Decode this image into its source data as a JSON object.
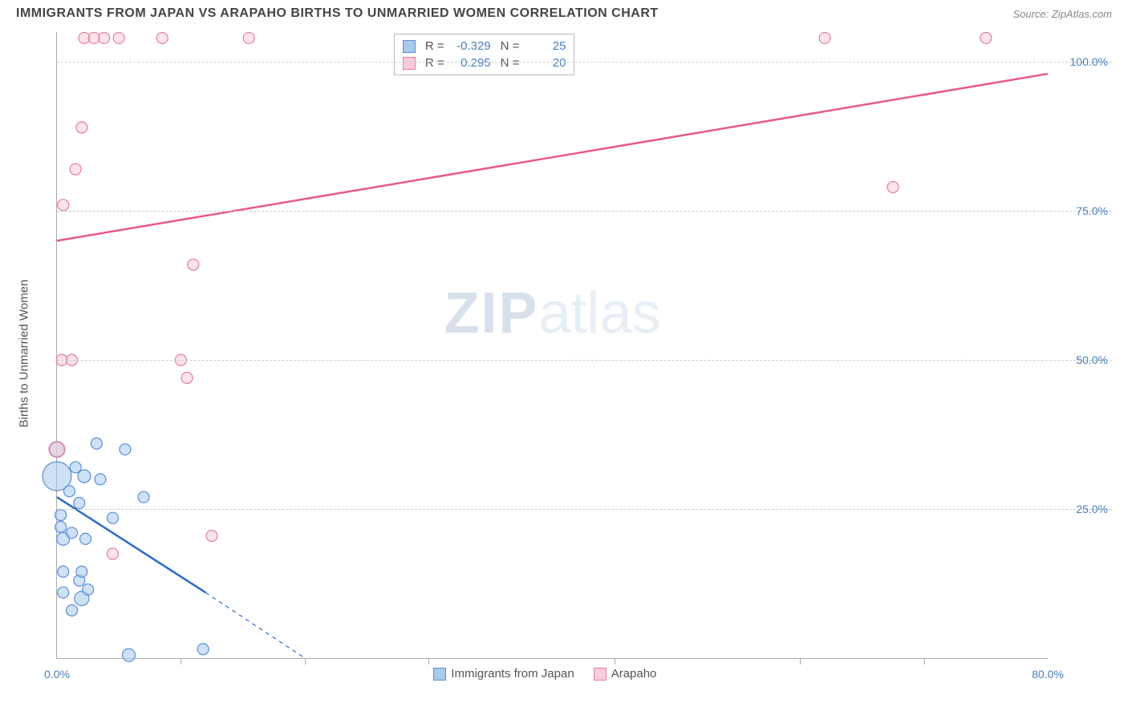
{
  "header": {
    "title": "IMMIGRANTS FROM JAPAN VS ARAPAHO BIRTHS TO UNMARRIED WOMEN CORRELATION CHART",
    "source": "Source: ZipAtlas.com"
  },
  "chart": {
    "type": "scatter-correlation",
    "ylabel": "Births to Unmarried Women",
    "xlim": [
      0,
      80
    ],
    "ylim": [
      0,
      105
    ],
    "xtick_positions": [
      0,
      80
    ],
    "xtick_labels": [
      "0.0%",
      "80.0%"
    ],
    "xtick_minor": [
      10,
      20,
      30,
      45,
      60,
      70
    ],
    "ytick_positions": [
      25,
      50,
      75,
      100
    ],
    "ytick_labels": [
      "25.0%",
      "50.0%",
      "75.0%",
      "100.0%"
    ],
    "grid_color": "#cccccc",
    "axis_color": "#aaaaaa",
    "background_color": "#ffffff",
    "label_fontsize": 15,
    "tick_fontsize": 14,
    "tick_color": "#4a7ebb",
    "watermark": {
      "part1": "ZIP",
      "part2": "atlas"
    },
    "series": [
      {
        "name": "Immigrants from Japan",
        "color_fill": "#a8c8ec",
        "color_stroke": "#5b8fd6",
        "fill_opacity": 0.55,
        "marker_radius": 7,
        "R": "-0.329",
        "N": "25",
        "trend": {
          "solid_from": [
            0,
            27
          ],
          "solid_to": [
            12,
            11
          ],
          "dashed_to": [
            20,
            0
          ],
          "width": 2.5,
          "color": "#2d6bc4"
        },
        "points": [
          {
            "x": 0.0,
            "y": 30.5,
            "r": 18
          },
          {
            "x": 0.0,
            "y": 35.0,
            "r": 9
          },
          {
            "x": 0.3,
            "y": 22.0,
            "r": 7
          },
          {
            "x": 0.3,
            "y": 24.0,
            "r": 7
          },
          {
            "x": 0.5,
            "y": 20.0,
            "r": 8
          },
          {
            "x": 0.5,
            "y": 14.5,
            "r": 7
          },
          {
            "x": 0.5,
            "y": 11.0,
            "r": 7
          },
          {
            "x": 1.0,
            "y": 28.0,
            "r": 7
          },
          {
            "x": 1.2,
            "y": 21.0,
            "r": 7
          },
          {
            "x": 1.2,
            "y": 8.0,
            "r": 7
          },
          {
            "x": 1.5,
            "y": 32.0,
            "r": 7
          },
          {
            "x": 1.8,
            "y": 13.0,
            "r": 7
          },
          {
            "x": 1.8,
            "y": 26.0,
            "r": 7
          },
          {
            "x": 2.0,
            "y": 14.5,
            "r": 7
          },
          {
            "x": 2.0,
            "y": 10.0,
            "r": 9
          },
          {
            "x": 2.2,
            "y": 30.5,
            "r": 8
          },
          {
            "x": 2.3,
            "y": 20.0,
            "r": 7
          },
          {
            "x": 2.5,
            "y": 11.5,
            "r": 7
          },
          {
            "x": 3.2,
            "y": 36.0,
            "r": 7
          },
          {
            "x": 3.5,
            "y": 30.0,
            "r": 7
          },
          {
            "x": 4.5,
            "y": 23.5,
            "r": 7
          },
          {
            "x": 5.5,
            "y": 35.0,
            "r": 7
          },
          {
            "x": 5.8,
            "y": 0.5,
            "r": 8
          },
          {
            "x": 7.0,
            "y": 27.0,
            "r": 7
          },
          {
            "x": 11.8,
            "y": 1.5,
            "r": 7
          }
        ]
      },
      {
        "name": "Arapaho",
        "color_fill": "#f7cdd9",
        "color_stroke": "#e77c9b",
        "fill_opacity": 0.55,
        "marker_radius": 7,
        "R": "0.295",
        "N": "20",
        "trend": {
          "solid_from": [
            0,
            70
          ],
          "solid_to": [
            80,
            98
          ],
          "width": 2.5,
          "color": "#e85a8a"
        },
        "points": [
          {
            "x": 0.0,
            "y": 35.0,
            "r": 10
          },
          {
            "x": 0.4,
            "y": 50.0,
            "r": 7
          },
          {
            "x": 0.5,
            "y": 76.0,
            "r": 7
          },
          {
            "x": 1.2,
            "y": 50.0,
            "r": 7
          },
          {
            "x": 1.5,
            "y": 82.0,
            "r": 7
          },
          {
            "x": 2.0,
            "y": 89.0,
            "r": 7
          },
          {
            "x": 2.2,
            "y": 104.0,
            "r": 7
          },
          {
            "x": 3.0,
            "y": 104.0,
            "r": 7
          },
          {
            "x": 3.8,
            "y": 104.0,
            "r": 7
          },
          {
            "x": 4.5,
            "y": 17.5,
            "r": 7
          },
          {
            "x": 5.0,
            "y": 104.0,
            "r": 7
          },
          {
            "x": 8.5,
            "y": 104.0,
            "r": 7
          },
          {
            "x": 10.0,
            "y": 50.0,
            "r": 7
          },
          {
            "x": 10.5,
            "y": 47.0,
            "r": 7
          },
          {
            "x": 11.0,
            "y": 66.0,
            "r": 7
          },
          {
            "x": 12.5,
            "y": 20.5,
            "r": 7
          },
          {
            "x": 15.5,
            "y": 104.0,
            "r": 7
          },
          {
            "x": 62.0,
            "y": 104.0,
            "r": 7
          },
          {
            "x": 67.5,
            "y": 79.0,
            "r": 7
          },
          {
            "x": 75.0,
            "y": 104.0,
            "r": 7
          }
        ]
      }
    ],
    "bottom_legend": [
      {
        "label": "Immigrants from Japan",
        "fill": "#a8c8ec",
        "stroke": "#5b8fd6"
      },
      {
        "label": "Arapaho",
        "fill": "#f7cdd9",
        "stroke": "#e77c9b"
      }
    ]
  }
}
